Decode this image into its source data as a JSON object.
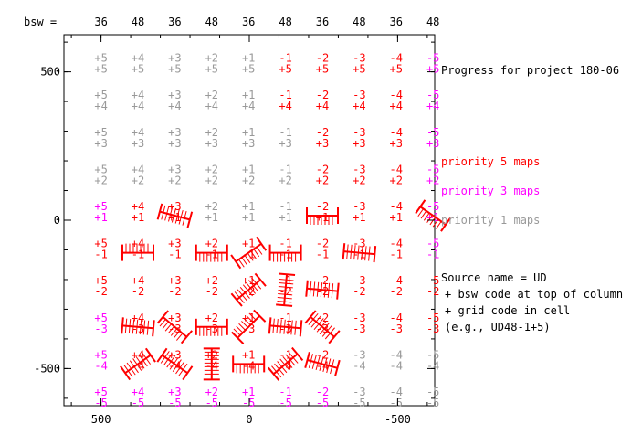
{
  "chart_data": {
    "type": "table",
    "title": "Progress for project 180-06",
    "bsw_label": "bsw =",
    "columns": [
      {
        "bsw": "36",
        "code": "+5"
      },
      {
        "bsw": "48",
        "code": "+4"
      },
      {
        "bsw": "36",
        "code": "+3"
      },
      {
        "bsw": "48",
        "code": "+2"
      },
      {
        "bsw": "36",
        "code": "+1"
      },
      {
        "bsw": "48",
        "code": "-1"
      },
      {
        "bsw": "36",
        "code": "-2"
      },
      {
        "bsw": "48",
        "code": "-3"
      },
      {
        "bsw": "36",
        "code": "-4"
      },
      {
        "bsw": "48",
        "code": "-5"
      }
    ],
    "rows": [
      "+5",
      "+4",
      "+3",
      "+2",
      "+1",
      "-1",
      "-2",
      "-3",
      "-4",
      "-5"
    ],
    "priority": [
      [
        1,
        1,
        1,
        1,
        1,
        5,
        5,
        5,
        5,
        3
      ],
      [
        1,
        1,
        1,
        1,
        1,
        5,
        5,
        5,
        5,
        3
      ],
      [
        1,
        1,
        1,
        1,
        1,
        1,
        5,
        5,
        5,
        3
      ],
      [
        1,
        1,
        1,
        1,
        1,
        1,
        5,
        5,
        5,
        3
      ],
      [
        3,
        5,
        0,
        1,
        1,
        1,
        0,
        5,
        0,
        3
      ],
      [
        5,
        0,
        5,
        0,
        0,
        0,
        5,
        5,
        5,
        3
      ],
      [
        5,
        5,
        5,
        5,
        0,
        0,
        0,
        5,
        5,
        5
      ],
      [
        3,
        0,
        0,
        0,
        0,
        0,
        0,
        5,
        5,
        5
      ],
      [
        3,
        0,
        0,
        0,
        0,
        0,
        0,
        1,
        1,
        1
      ],
      [
        3,
        3,
        3,
        3,
        3,
        3,
        3,
        1,
        1,
        1
      ]
    ],
    "observed": [
      {
        "col": 2,
        "row": 4,
        "angle": 15,
        "hatch": "right"
      },
      {
        "col": 6,
        "row": 4,
        "angle": 0,
        "hatch": "down"
      },
      {
        "col": 9,
        "row": 4,
        "angle": 35,
        "hatch": "down"
      },
      {
        "col": 1,
        "row": 5,
        "angle": 0,
        "hatch": "left"
      },
      {
        "col": 3,
        "row": 5,
        "angle": 0,
        "hatch": "down"
      },
      {
        "col": 4,
        "row": 5,
        "angle": -35,
        "hatch": "down"
      },
      {
        "col": 5,
        "row": 5,
        "angle": 0,
        "hatch": "down"
      },
      {
        "col": 7,
        "row": 5,
        "angle": 5,
        "hatch": "right"
      },
      {
        "col": 4,
        "row": 6,
        "angle": -40,
        "hatch": "right"
      },
      {
        "col": 5,
        "row": 6,
        "angle": -85,
        "hatch": "right"
      },
      {
        "col": 6,
        "row": 6,
        "angle": 5,
        "hatch": "right"
      },
      {
        "col": 1,
        "row": 7,
        "angle": 5,
        "hatch": "right"
      },
      {
        "col": 2,
        "row": 7,
        "angle": 40,
        "hatch": "down"
      },
      {
        "col": 3,
        "row": 7,
        "angle": 0,
        "hatch": "down"
      },
      {
        "col": 4,
        "row": 7,
        "angle": -45,
        "hatch": "left"
      },
      {
        "col": 5,
        "row": 7,
        "angle": 5,
        "hatch": "right"
      },
      {
        "col": 6,
        "row": 7,
        "angle": 40,
        "hatch": "right"
      },
      {
        "col": 1,
        "row": 8,
        "angle": -35,
        "hatch": "right"
      },
      {
        "col": 2,
        "row": 8,
        "angle": 35,
        "hatch": "right"
      },
      {
        "col": 3,
        "row": 8,
        "angle": 90,
        "hatch": "right"
      },
      {
        "col": 4,
        "row": 8,
        "angle": 0,
        "hatch": "down"
      },
      {
        "col": 5,
        "row": 8,
        "angle": -40,
        "hatch": "right"
      },
      {
        "col": 6,
        "row": 8,
        "angle": 15,
        "hatch": "right"
      }
    ],
    "x_axis": {
      "ticks": [
        "500",
        "0",
        "-500"
      ],
      "values": [
        500,
        0,
        -500
      ],
      "range": [
        625,
        -625
      ]
    },
    "y_axis": {
      "ticks": [
        "500",
        "0",
        "-500"
      ],
      "values": [
        500,
        0,
        -500
      ],
      "range": [
        -625,
        625
      ]
    },
    "legend": {
      "priority5": "priority 5 maps",
      "priority3": "priority 3 maps",
      "priority1": "priority 1 maps"
    },
    "notes": [
      "Source name = UD",
      "+ bsw code at top of column",
      "+ grid code in cell",
      "(e.g., UD48-1+5)"
    ],
    "colors": {
      "p5": "#ff0000",
      "p3": "#ff00ff",
      "p1": "#999999",
      "p0": "#ff0000"
    }
  }
}
